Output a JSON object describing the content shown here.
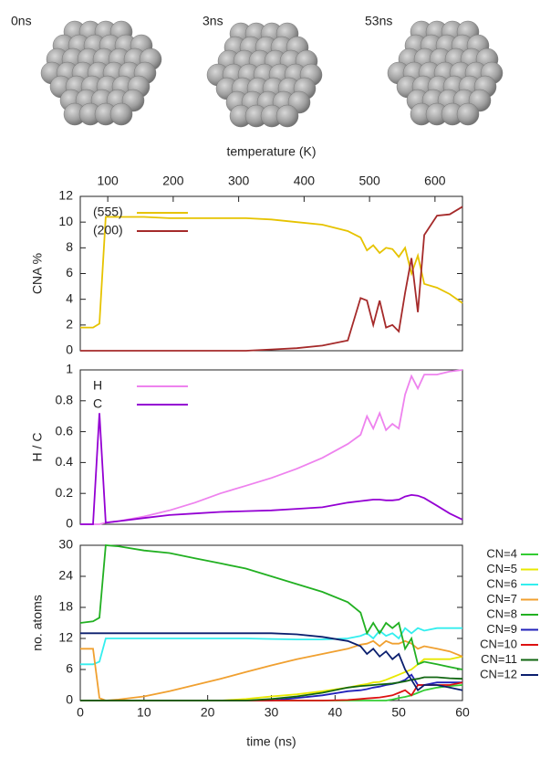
{
  "images": [
    {
      "label": "0ns"
    },
    {
      "label": "3ns"
    },
    {
      "label": "53ns"
    }
  ],
  "chart_data": [
    {
      "type": "line",
      "y_label": "CNA %",
      "x2_label": "temperature (K)",
      "x": [
        0,
        2,
        3,
        4,
        6,
        10,
        14,
        18,
        22,
        26,
        30,
        34,
        38,
        42,
        44,
        45,
        46,
        47,
        48,
        49,
        50,
        51,
        52,
        53,
        54,
        56,
        58,
        60
      ],
      "xlim": [
        0,
        60
      ],
      "x2lim": [
        58,
        642
      ],
      "x2ticks": [
        100,
        200,
        300,
        400,
        500,
        600
      ],
      "ylim": [
        0,
        12
      ],
      "yticks": [
        0,
        2,
        4,
        6,
        8,
        10,
        12
      ],
      "legend": "upper left",
      "series": [
        {
          "name": "(555)",
          "color": "#e6c300",
          "values": [
            1.8,
            1.8,
            2.1,
            10.4,
            10.4,
            10.4,
            10.3,
            10.3,
            10.3,
            10.3,
            10.2,
            10.0,
            9.8,
            9.3,
            8.8,
            7.8,
            8.2,
            7.6,
            8.0,
            7.9,
            7.3,
            8.0,
            6.0,
            7.4,
            5.2,
            4.9,
            4.4,
            3.7
          ]
        },
        {
          "name": "(200)",
          "color": "#a52a2a",
          "values": [
            0,
            0,
            0,
            0,
            0,
            0,
            0,
            0,
            0,
            0,
            0.1,
            0.2,
            0.4,
            0.8,
            4.1,
            3.9,
            2.0,
            3.9,
            1.8,
            2.0,
            1.5,
            4.5,
            7.2,
            3.0,
            9.0,
            10.5,
            10.6,
            11.2
          ]
        }
      ]
    },
    {
      "type": "line",
      "y_label": "H / C",
      "x": [
        0,
        2,
        3,
        4,
        6,
        10,
        14,
        18,
        22,
        26,
        30,
        34,
        38,
        42,
        44,
        45,
        46,
        47,
        48,
        49,
        50,
        51,
        52,
        53,
        54,
        56,
        58,
        60
      ],
      "xlim": [
        0,
        60
      ],
      "ylim": [
        0,
        1
      ],
      "yticks": [
        0,
        0.2,
        0.4,
        0.6,
        0.8,
        1
      ],
      "legend": "upper left",
      "series": [
        {
          "name": "H",
          "color": "#ee82ee",
          "values": [
            0,
            0,
            0,
            0.01,
            0.02,
            0.05,
            0.09,
            0.14,
            0.2,
            0.25,
            0.3,
            0.36,
            0.43,
            0.52,
            0.58,
            0.7,
            0.62,
            0.72,
            0.61,
            0.65,
            0.62,
            0.84,
            0.96,
            0.88,
            0.97,
            0.97,
            0.99,
            1.0
          ]
        },
        {
          "name": "C",
          "color": "#9400d3",
          "values": [
            0,
            0,
            0.72,
            0.01,
            0.02,
            0.04,
            0.06,
            0.07,
            0.08,
            0.085,
            0.09,
            0.1,
            0.11,
            0.14,
            0.15,
            0.155,
            0.16,
            0.16,
            0.155,
            0.155,
            0.16,
            0.18,
            0.19,
            0.185,
            0.17,
            0.12,
            0.07,
            0.03
          ]
        }
      ]
    },
    {
      "type": "line",
      "y_label": "no. atoms",
      "x_label": "time (ns)",
      "x": [
        0,
        2,
        3,
        4,
        6,
        10,
        14,
        18,
        22,
        26,
        30,
        34,
        38,
        42,
        44,
        45,
        46,
        47,
        48,
        49,
        50,
        51,
        52,
        53,
        54,
        56,
        58,
        60
      ],
      "xlim": [
        0,
        60
      ],
      "xticks": [
        0,
        10,
        20,
        30,
        40,
        50,
        60
      ],
      "ylim": [
        0,
        30
      ],
      "yticks": [
        0,
        6,
        12,
        18,
        24,
        30
      ],
      "legend": "outside right",
      "series": [
        {
          "name": "CN=4",
          "color": "#33cc33",
          "values": [
            0,
            0,
            0,
            0,
            0,
            0,
            0,
            0,
            0,
            0,
            0,
            0,
            0,
            0,
            0,
            0,
            0,
            0,
            0,
            0.2,
            0.5,
            0.7,
            1,
            1.5,
            2,
            2.5,
            2.8,
            3
          ]
        },
        {
          "name": "CN=5",
          "color": "#e8e800",
          "values": [
            0,
            0,
            0,
            0,
            0,
            0,
            0,
            0,
            0,
            0.3,
            0.8,
            1.2,
            1.8,
            2.5,
            3,
            3.2,
            3.5,
            3.6,
            4,
            4.5,
            5,
            5.5,
            6,
            7,
            8,
            8,
            8,
            8.5
          ]
        },
        {
          "name": "CN=6",
          "color": "#33eeee",
          "values": [
            7,
            7,
            7.5,
            12,
            12,
            12,
            12,
            12,
            12,
            12,
            11.9,
            11.8,
            11.8,
            12,
            12.5,
            13,
            12,
            13.5,
            12.5,
            13,
            12,
            14,
            13,
            14,
            13.5,
            14,
            14,
            14
          ]
        },
        {
          "name": "CN=7",
          "color": "#f0a030",
          "values": [
            10,
            10,
            0.5,
            0,
            0.2,
            0.8,
            1.8,
            3,
            4.2,
            5.5,
            6.8,
            8,
            9,
            10,
            10.8,
            11,
            11.5,
            10.5,
            11.5,
            11,
            11,
            11.5,
            11,
            10,
            10.5,
            10,
            9.5,
            8.5
          ]
        },
        {
          "name": "CN=8",
          "color": "#22b022",
          "values": [
            15,
            15.3,
            16,
            30,
            29.8,
            29,
            28.5,
            27.5,
            26.5,
            25.5,
            24,
            22.5,
            21,
            19,
            17,
            13,
            15,
            13,
            15,
            14,
            15,
            10,
            12,
            7,
            7.5,
            7,
            6.5,
            6
          ]
        },
        {
          "name": "CN=9",
          "color": "#2222bb",
          "values": [
            0,
            0,
            0,
            0,
            0,
            0,
            0,
            0,
            0,
            0,
            0,
            0.5,
            1,
            1.8,
            2,
            2.2,
            2.5,
            2.7,
            3,
            3.2,
            3.5,
            4,
            5,
            3,
            3,
            3.5,
            3.5,
            3.5
          ]
        },
        {
          "name": "CN=10",
          "color": "#dd1111",
          "values": [
            0,
            0,
            0,
            0,
            0,
            0,
            0,
            0,
            0,
            0,
            0,
            0,
            0,
            0.1,
            0.3,
            0.4,
            0.5,
            0.6,
            0.8,
            1,
            1.5,
            2,
            1,
            3,
            3,
            3,
            3,
            3.5
          ]
        },
        {
          "name": "CN=11",
          "color": "#116611",
          "values": [
            0,
            0,
            0,
            0,
            0,
            0,
            0,
            0,
            0,
            0,
            0.3,
            0.8,
            1.5,
            2.5,
            2.8,
            2.9,
            3,
            3.1,
            3.2,
            3.3,
            3.5,
            3.7,
            4,
            4.2,
            4.5,
            4.5,
            4.3,
            4.2
          ]
        },
        {
          "name": "CN=12",
          "color": "#0b1f6e",
          "values": [
            13,
            13,
            13,
            13,
            13,
            13,
            13,
            13,
            13,
            13,
            13,
            12.8,
            12.3,
            11.5,
            10.5,
            9,
            10,
            8.5,
            9.5,
            8,
            9,
            6,
            4,
            2,
            3,
            3,
            2.5,
            2
          ]
        }
      ]
    }
  ]
}
